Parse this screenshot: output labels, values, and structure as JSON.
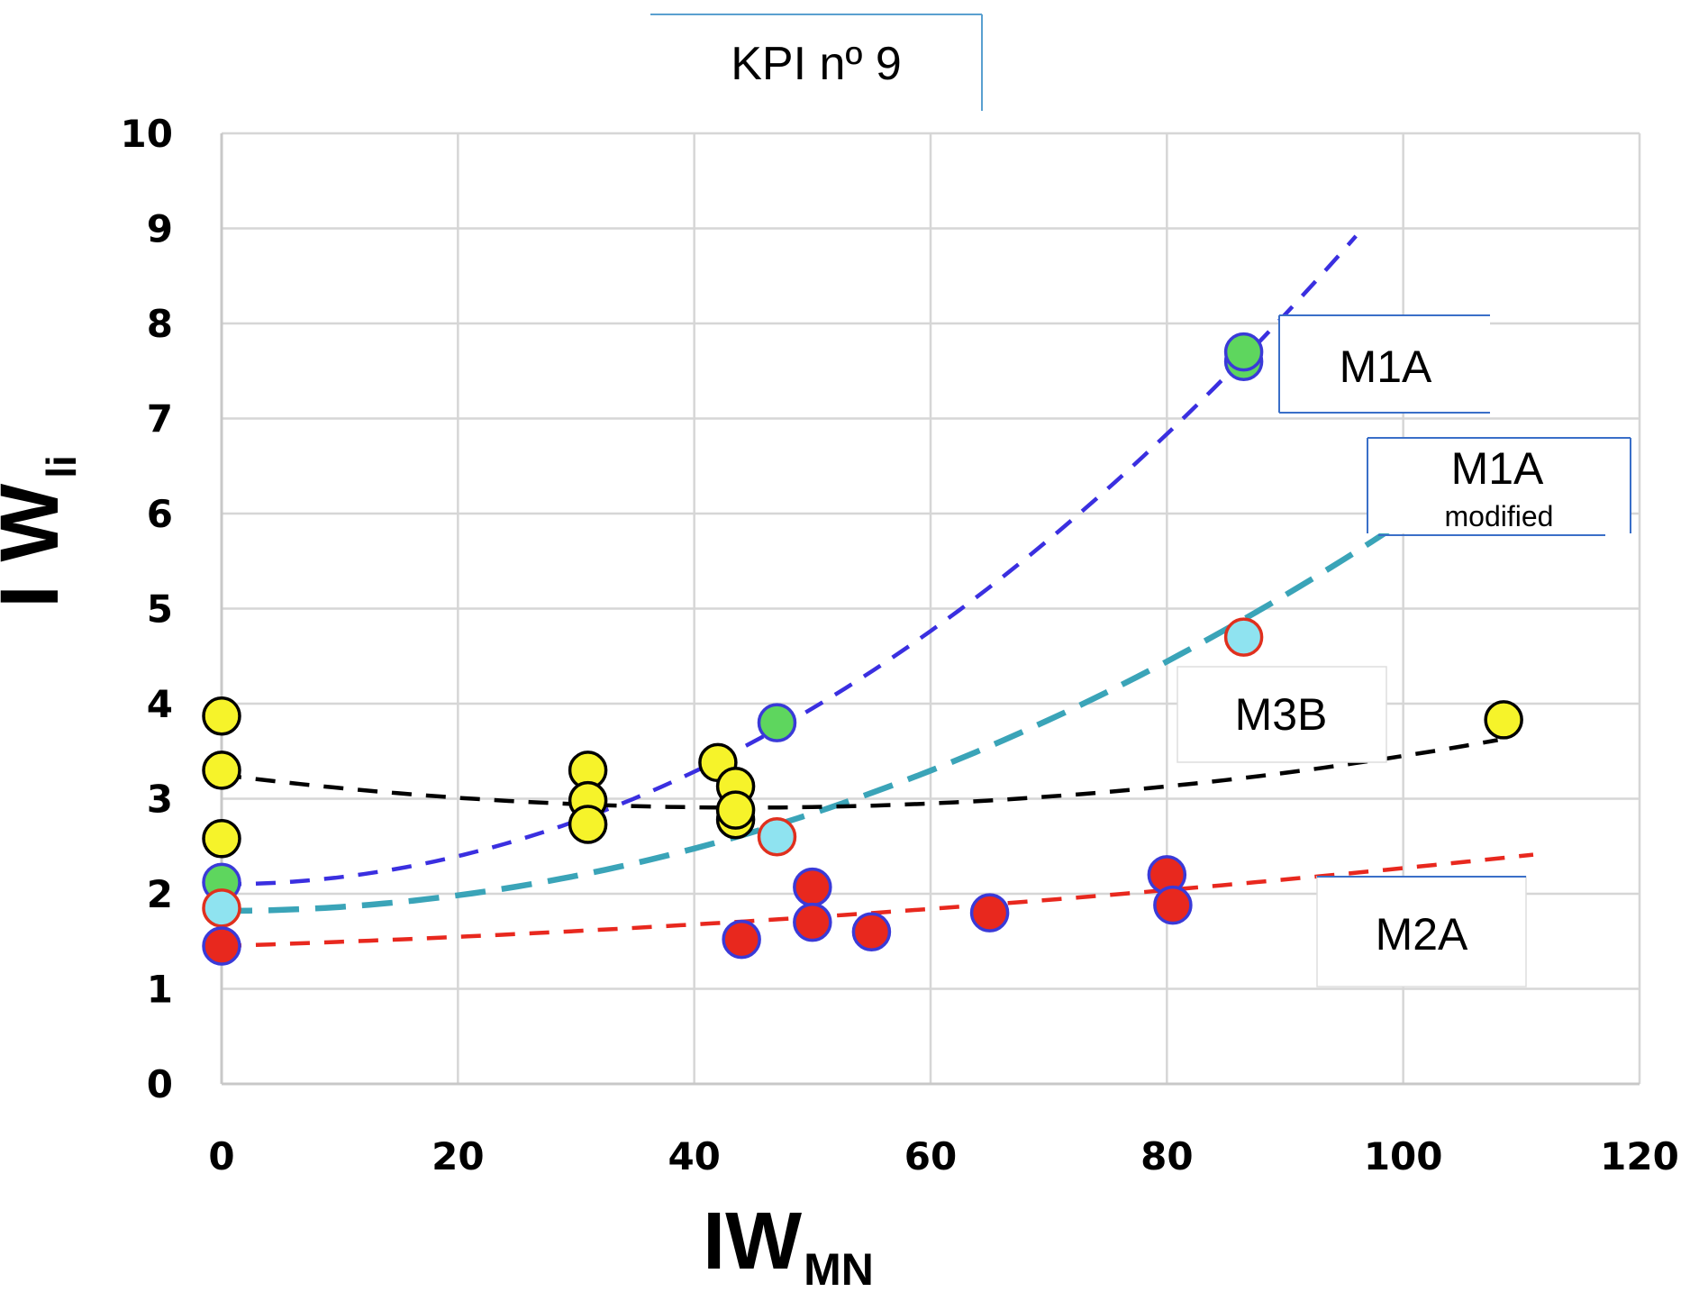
{
  "chart_data": {
    "type": "scatter",
    "title": "KPI nº 9",
    "xlabel": {
      "main": "IW",
      "sub": "MN"
    },
    "ylabel": {
      "main": "I W",
      "sub": "li"
    },
    "xlim": [
      0,
      120
    ],
    "ylim": [
      0,
      10
    ],
    "x_ticks": [
      "0",
      "20",
      "40",
      "60",
      "80",
      "100",
      "120"
    ],
    "y_ticks": [
      "0",
      "1",
      "2",
      "3",
      "4",
      "5",
      "6",
      "7",
      "8",
      "9",
      "10"
    ],
    "grid": true,
    "series": [
      {
        "name": "M1A",
        "fill": "#5ed65e",
        "edge": "#3a3ad8",
        "points": [
          [
            0,
            2.12
          ],
          [
            47,
            3.8
          ],
          [
            86.5,
            7.6
          ],
          [
            86.5,
            7.7
          ]
        ],
        "trend": {
          "color": "#3a2fe0",
          "coef": [
            2.1,
            0.0,
            0.00074
          ],
          "x_range": [
            0,
            96
          ],
          "dash": "medium"
        }
      },
      {
        "name": "M1A modified",
        "fill": "#8fe3f0",
        "edge": "#e0301e",
        "points": [
          [
            0,
            1.85
          ],
          [
            47,
            2.6
          ],
          [
            86.5,
            4.7
          ]
        ],
        "trend": {
          "color": "#3aa4b8",
          "coef": [
            1.82,
            0.0,
            0.00041
          ],
          "x_range": [
            0,
            100
          ],
          "dash": "long"
        }
      },
      {
        "name": "M3B",
        "fill": "#f6f32a",
        "edge": "#000000",
        "points": [
          [
            0,
            3.87
          ],
          [
            0,
            3.3
          ],
          [
            0,
            2.58
          ],
          [
            31,
            3.3
          ],
          [
            31,
            2.98
          ],
          [
            31,
            2.73
          ],
          [
            42,
            3.38
          ],
          [
            43.5,
            3.13
          ],
          [
            43.5,
            2.78
          ],
          [
            43.5,
            2.88
          ],
          [
            108.5,
            3.83
          ]
        ],
        "trend": {
          "color": "#000000",
          "coef": [
            3.25,
            -0.0155,
            0.000175
          ],
          "x_range": [
            0,
            108
          ],
          "dash": "medium"
        }
      },
      {
        "name": "M2A",
        "fill": "#e8281e",
        "edge": "#3a3ad8",
        "points": [
          [
            0,
            1.45
          ],
          [
            44,
            1.52
          ],
          [
            50,
            2.07
          ],
          [
            50,
            1.7
          ],
          [
            55,
            1.6
          ],
          [
            65,
            1.8
          ],
          [
            80,
            2.2
          ],
          [
            80.5,
            1.88
          ]
        ],
        "trend": {
          "color": "#e8281e",
          "coef": [
            1.45,
            0.004,
            4.2e-05
          ],
          "x_range": [
            0,
            111
          ],
          "dash": "medium"
        }
      }
    ],
    "annotations": [
      {
        "label": "M1A",
        "sub": ""
      },
      {
        "label": "M1A",
        "sub": "modified"
      },
      {
        "label": "M3B",
        "sub": ""
      },
      {
        "label": "M2A",
        "sub": ""
      }
    ]
  }
}
